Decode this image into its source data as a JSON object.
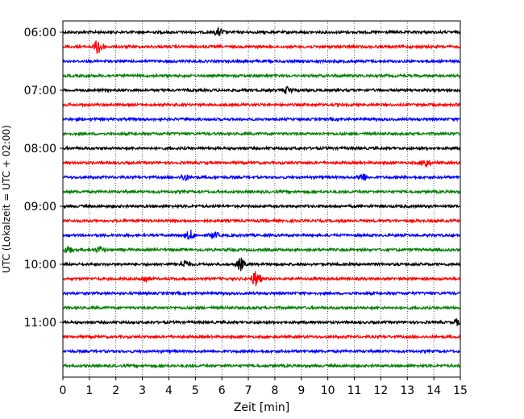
{
  "chart_data": {
    "type": "line",
    "title": "",
    "xlabel": "Zeit  [min]",
    "ylabel": "UTC (Lokalzeit = UTC + 02:00)",
    "xlim": [
      0,
      15
    ],
    "x_ticks": [
      "0",
      "1",
      "2",
      "3",
      "4",
      "5",
      "6",
      "7",
      "8",
      "9",
      "10",
      "11",
      "12",
      "13",
      "14",
      "15"
    ],
    "y_ticks": [
      "06:00",
      "07:00",
      "08:00",
      "09:00",
      "10:00",
      "11:00"
    ],
    "y_tick_rows": [
      0,
      4,
      8,
      12,
      16,
      20
    ],
    "grid": "vertical dotted at each minute",
    "row_colors": [
      "#000000",
      "#ff0000",
      "#0000ff",
      "#008000"
    ],
    "rows": 24,
    "row_interval_minutes": 15,
    "start_time": "06:00",
    "events": [
      {
        "row": 0,
        "minute": 5.9,
        "amplitude": 1.6
      },
      {
        "row": 1,
        "minute": 1.35,
        "amplitude": 3.5
      },
      {
        "row": 4,
        "minute": 8.5,
        "amplitude": 1.6
      },
      {
        "row": 9,
        "minute": 13.7,
        "amplitude": 1.7
      },
      {
        "row": 10,
        "minute": 4.6,
        "amplitude": 1.3
      },
      {
        "row": 10,
        "minute": 11.3,
        "amplitude": 1.8
      },
      {
        "row": 14,
        "minute": 4.8,
        "amplitude": 2.0
      },
      {
        "row": 14,
        "minute": 5.7,
        "amplitude": 1.4
      },
      {
        "row": 15,
        "minute": 0.2,
        "amplitude": 1.4
      },
      {
        "row": 15,
        "minute": 1.4,
        "amplitude": 1.2
      },
      {
        "row": 16,
        "minute": 4.6,
        "amplitude": 1.8
      },
      {
        "row": 16,
        "minute": 6.7,
        "amplitude": 2.6
      },
      {
        "row": 17,
        "minute": 3.1,
        "amplitude": 1.4
      },
      {
        "row": 17,
        "minute": 7.3,
        "amplitude": 3.5
      },
      {
        "row": 20,
        "minute": 14.9,
        "amplitude": 1.2
      }
    ]
  }
}
